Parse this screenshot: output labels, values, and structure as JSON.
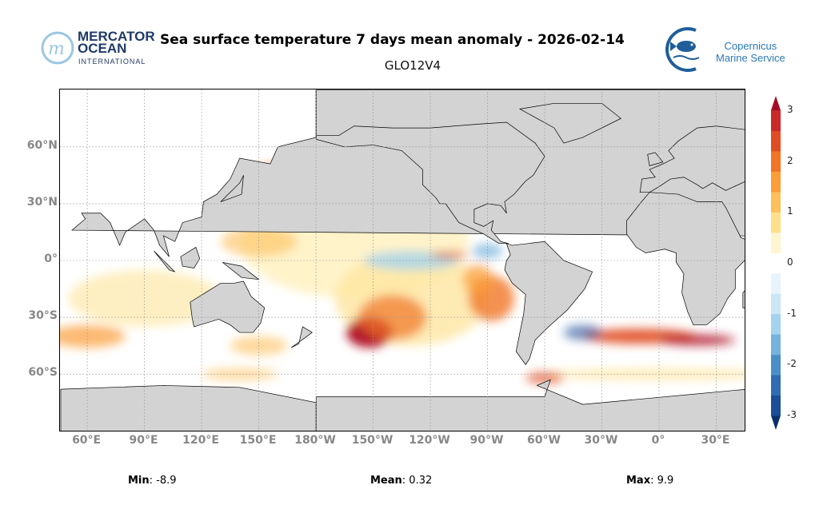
{
  "header": {
    "title": "Sea surface temperature 7 days mean anomaly - 2026-02-14",
    "subtitle": "GLO12V4",
    "logo_left": {
      "line1": "MERCATOR",
      "line2": "OCEAN",
      "line3": "INTERNATIONAL"
    },
    "logo_right": {
      "line1": "Copernicus",
      "line2": "Marine Service"
    }
  },
  "map": {
    "lat_labels": [
      "60°N",
      "30°N",
      "0°",
      "30°S",
      "60°S"
    ],
    "lon_labels": [
      "60°E",
      "90°E",
      "120°E",
      "150°E",
      "180°W",
      "150°W",
      "120°W",
      "90°W",
      "60°W",
      "30°W",
      "0°",
      "30°E"
    ],
    "land_color": "#d3d3d3"
  },
  "colorbar": {
    "ticks": [
      "3",
      "2",
      "1",
      "0",
      "-1",
      "-2",
      "-3"
    ],
    "range": [
      -3,
      3
    ],
    "colors": [
      "#08306b",
      "#1a4f96",
      "#2f6cb0",
      "#4a8fc6",
      "#75b2dc",
      "#a3d3ef",
      "#cbe6f6",
      "#e8f4fb",
      "#ffffff",
      "#fff5d0",
      "#fee08b",
      "#fdc05a",
      "#fb9d38",
      "#f07525",
      "#e04c24",
      "#c9292a",
      "#a50f26"
    ]
  },
  "stats": {
    "min_label": "Min",
    "min_value": "-8.9",
    "mean_label": "Mean",
    "mean_value": "0.32",
    "max_label": "Max",
    "max_value": "9.9"
  }
}
